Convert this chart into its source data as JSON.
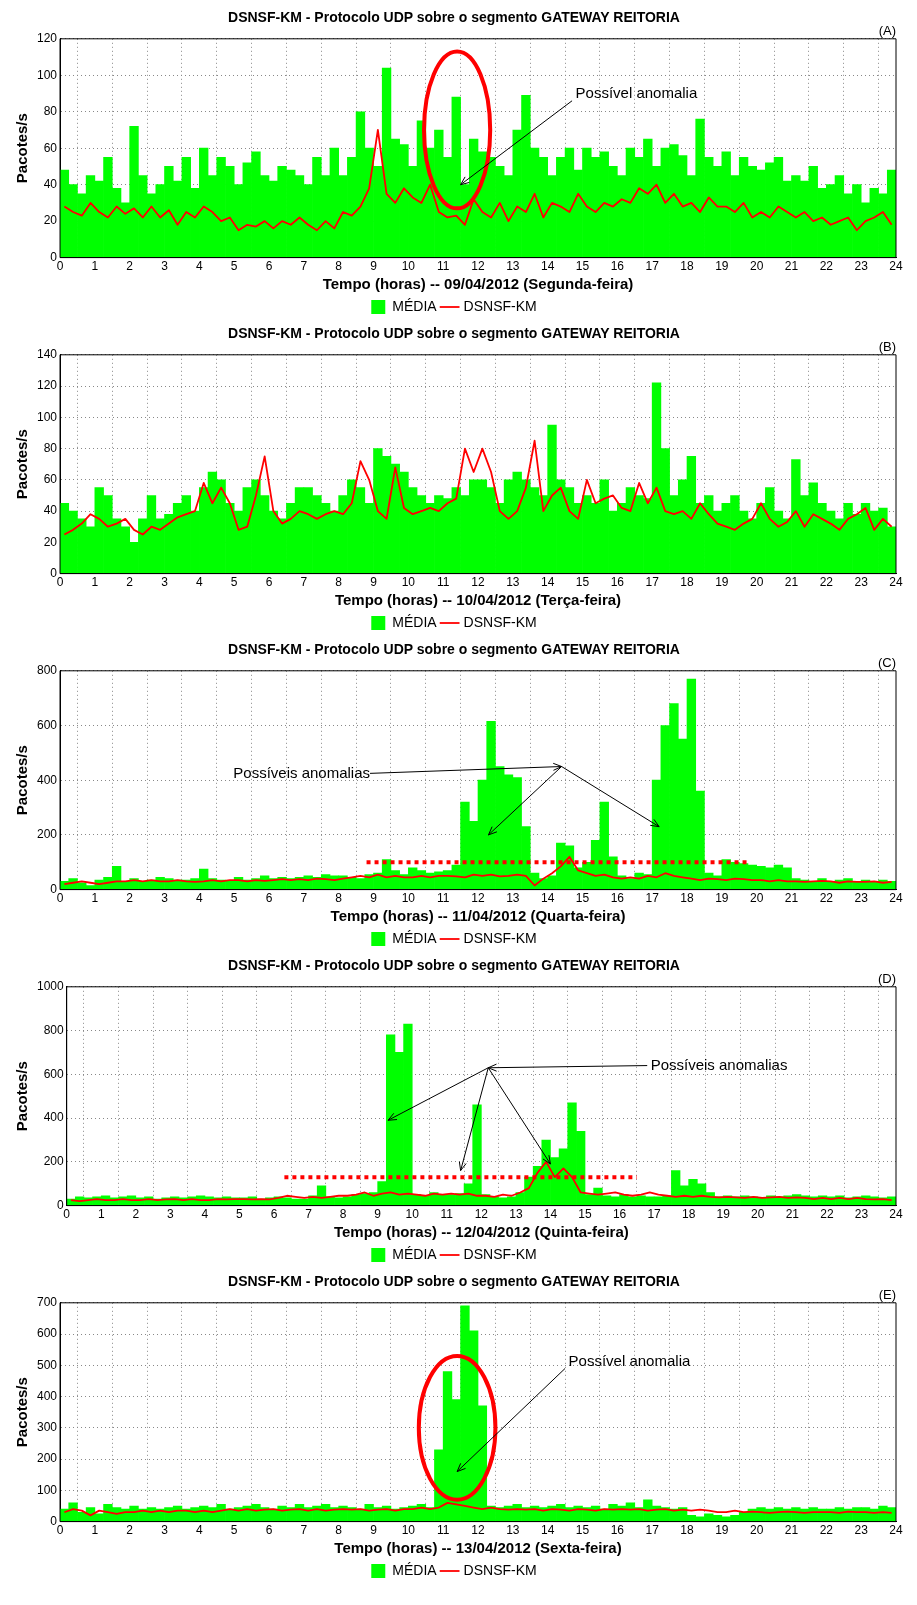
{
  "chart_data": [
    {
      "type": "bar",
      "title": "DSNSF-KM - Protocolo UDP sobre o segmento GATEWAY REITORIA",
      "xlabel": "Tempo (horas) -- 09/04/2012 (Segunda-feira)",
      "ylabel": "Pacotes/s",
      "xlim": [
        0,
        24
      ],
      "xticks": [
        0,
        1,
        2,
        3,
        4,
        5,
        6,
        7,
        8,
        9,
        10,
        11,
        12,
        13,
        14,
        15,
        16,
        17,
        18,
        19,
        20,
        21,
        22,
        23,
        24
      ],
      "ylim": [
        0,
        120
      ],
      "yticks": [
        0,
        20,
        40,
        60,
        80,
        100,
        120
      ],
      "grid": true,
      "legend": "bottom",
      "annotations": [
        "(A)",
        {
          "text": "Possível anomalia",
          "x": 11.5,
          "y": 40
        }
      ],
      "x": [
        0.125,
        0.375,
        0.625,
        0.875,
        1.125,
        1.375,
        1.625,
        1.875,
        2.125,
        2.375,
        2.625,
        2.875,
        3.125,
        3.375,
        3.625,
        3.875,
        4.125,
        4.375,
        4.625,
        4.875,
        5.125,
        5.375,
        5.625,
        5.875,
        6.125,
        6.375,
        6.625,
        6.875,
        7.125,
        7.375,
        7.625,
        7.875,
        8.125,
        8.375,
        8.625,
        8.875,
        9.125,
        9.375,
        9.625,
        9.875,
        10.125,
        10.375,
        10.625,
        10.875,
        11.125,
        11.375,
        11.625,
        11.875,
        12.125,
        12.375,
        12.625,
        12.875,
        13.125,
        13.375,
        13.625,
        13.875,
        14.125,
        14.375,
        14.625,
        14.875,
        15.125,
        15.375,
        15.625,
        15.875,
        16.125,
        16.375,
        16.625,
        16.875,
        17.125,
        17.375,
        17.625,
        17.875,
        18.125,
        18.375,
        18.625,
        18.875,
        19.125,
        19.375,
        19.625,
        19.875,
        20.125,
        20.375,
        20.625,
        20.875,
        21.125,
        21.375,
        21.625,
        21.875,
        22.125,
        22.375,
        22.625,
        22.875,
        23.125,
        23.375,
        23.625,
        23.875
      ],
      "series": [
        {
          "name": "MÉDIA",
          "color": "#00ff00",
          "values": [
            48,
            40,
            35,
            45,
            42,
            55,
            38,
            30,
            72,
            45,
            35,
            40,
            50,
            42,
            55,
            38,
            60,
            45,
            55,
            50,
            40,
            52,
            58,
            45,
            42,
            50,
            48,
            45,
            40,
            55,
            45,
            60,
            45,
            55,
            80,
            60,
            50,
            104,
            65,
            62,
            50,
            75,
            60,
            70,
            55,
            88,
            40,
            65,
            58,
            55,
            50,
            45,
            70,
            89,
            60,
            55,
            45,
            55,
            60,
            48,
            60,
            55,
            58,
            50,
            45,
            60,
            55,
            65,
            50,
            60,
            62,
            56,
            45,
            76,
            55,
            50,
            58,
            45,
            55,
            50,
            48,
            52,
            55,
            42,
            45,
            42,
            50,
            38,
            40,
            45,
            35,
            40,
            30,
            38,
            35,
            48
          ]
        },
        {
          "name": "DSNSF-KM",
          "type": "line",
          "color": "#ff0000",
          "values": [
            28,
            25,
            23,
            30,
            25,
            22,
            28,
            24,
            27,
            22,
            28,
            22,
            26,
            18,
            25,
            22,
            28,
            25,
            20,
            22,
            15,
            18,
            17,
            20,
            16,
            20,
            18,
            22,
            18,
            15,
            20,
            16,
            25,
            23,
            28,
            38,
            70,
            35,
            30,
            38,
            33,
            30,
            40,
            25,
            22,
            23,
            18,
            32,
            25,
            22,
            30,
            20,
            28,
            25,
            35,
            22,
            30,
            28,
            25,
            35,
            28,
            25,
            30,
            28,
            32,
            30,
            38,
            35,
            40,
            30,
            35,
            28,
            30,
            25,
            33,
            28,
            28,
            25,
            30,
            22,
            25,
            22,
            28,
            25,
            22,
            25,
            20,
            22,
            18,
            20,
            22,
            15,
            20,
            22,
            25,
            18
          ]
        }
      ]
    },
    {
      "type": "bar",
      "title": "DSNSF-KM - Protocolo UDP sobre o segmento GATEWAY REITORIA",
      "xlabel": "Tempo (horas) -- 10/04/2012 (Terça-feira)",
      "ylabel": "Pacotes/s",
      "xlim": [
        0,
        24
      ],
      "xticks": [
        0,
        1,
        2,
        3,
        4,
        5,
        6,
        7,
        8,
        9,
        10,
        11,
        12,
        13,
        14,
        15,
        16,
        17,
        18,
        19,
        20,
        21,
        22,
        23,
        24
      ],
      "ylim": [
        0,
        140
      ],
      "yticks": [
        0,
        20,
        40,
        60,
        80,
        100,
        120,
        140
      ],
      "grid": true,
      "legend": "bottom",
      "annotations": [
        "(B)"
      ],
      "x": [
        0.125,
        0.375,
        0.625,
        0.875,
        1.125,
        1.375,
        1.625,
        1.875,
        2.125,
        2.375,
        2.625,
        2.875,
        3.125,
        3.375,
        3.625,
        3.875,
        4.125,
        4.375,
        4.625,
        4.875,
        5.125,
        5.375,
        5.625,
        5.875,
        6.125,
        6.375,
        6.625,
        6.875,
        7.125,
        7.375,
        7.625,
        7.875,
        8.125,
        8.375,
        8.625,
        8.875,
        9.125,
        9.375,
        9.625,
        9.875,
        10.125,
        10.375,
        10.625,
        10.875,
        11.125,
        11.375,
        11.625,
        11.875,
        12.125,
        12.375,
        12.625,
        12.875,
        13.125,
        13.375,
        13.625,
        13.875,
        14.125,
        14.375,
        14.625,
        14.875,
        15.125,
        15.375,
        15.625,
        15.875,
        16.125,
        16.375,
        16.625,
        16.875,
        17.125,
        17.375,
        17.625,
        17.875,
        18.125,
        18.375,
        18.625,
        18.875,
        19.125,
        19.375,
        19.625,
        19.875,
        20.125,
        20.375,
        20.625,
        20.875,
        21.125,
        21.375,
        21.625,
        21.875,
        22.125,
        22.375,
        22.625,
        22.875,
        23.125,
        23.375,
        23.625,
        23.875
      ],
      "series": [
        {
          "name": "MÉDIA",
          "color": "#00ff00",
          "values": [
            45,
            40,
            35,
            30,
            55,
            50,
            35,
            30,
            20,
            35,
            50,
            35,
            38,
            45,
            50,
            40,
            55,
            65,
            60,
            45,
            40,
            55,
            60,
            50,
            40,
            35,
            45,
            55,
            55,
            50,
            45,
            40,
            50,
            60,
            55,
            45,
            80,
            75,
            70,
            65,
            55,
            50,
            45,
            50,
            48,
            55,
            50,
            60,
            60,
            55,
            45,
            60,
            65,
            60,
            55,
            50,
            95,
            60,
            55,
            45,
            50,
            45,
            60,
            40,
            45,
            55,
            50,
            48,
            122,
            80,
            50,
            60,
            75,
            45,
            50,
            40,
            45,
            50,
            40,
            35,
            45,
            55,
            40,
            35,
            73,
            50,
            58,
            45,
            40,
            35,
            45,
            38,
            45,
            40,
            42,
            30
          ]
        },
        {
          "name": "DSNSF-KM",
          "type": "line",
          "color": "#ff0000",
          "values": [
            25,
            28,
            32,
            38,
            35,
            30,
            32,
            35,
            28,
            25,
            30,
            28,
            32,
            36,
            38,
            40,
            58,
            45,
            55,
            45,
            28,
            30,
            50,
            75,
            40,
            32,
            35,
            40,
            38,
            35,
            38,
            40,
            38,
            45,
            72,
            60,
            40,
            35,
            68,
            42,
            38,
            40,
            42,
            40,
            45,
            48,
            80,
            65,
            80,
            65,
            40,
            35,
            40,
            55,
            85,
            40,
            50,
            55,
            40,
            35,
            60,
            45,
            48,
            50,
            42,
            40,
            58,
            45,
            55,
            40,
            38,
            40,
            35,
            45,
            38,
            32,
            30,
            28,
            32,
            35,
            45,
            35,
            30,
            33,
            40,
            30,
            38,
            35,
            32,
            28,
            35,
            38,
            42,
            28,
            35,
            30
          ]
        }
      ]
    },
    {
      "type": "bar",
      "title": "DSNSF-KM - Protocolo UDP sobre o segmento GATEWAY REITORIA",
      "xlabel": "Tempo (horas) -- 11/04/2012 (Quarta-feira)",
      "ylabel": "Pacotes/s",
      "xlim": [
        0,
        24
      ],
      "xticks": [
        0,
        1,
        2,
        3,
        4,
        5,
        6,
        7,
        8,
        9,
        10,
        11,
        12,
        13,
        14,
        15,
        16,
        17,
        18,
        19,
        20,
        21,
        22,
        23,
        24
      ],
      "ylim": [
        0,
        800
      ],
      "yticks": [
        0,
        200,
        400,
        600,
        800
      ],
      "grid": true,
      "legend": "bottom",
      "annotations": [
        "(C)",
        "Possíveis anomalias"
      ],
      "x": [
        0.125,
        0.375,
        0.625,
        0.875,
        1.125,
        1.375,
        1.625,
        1.875,
        2.125,
        2.375,
        2.625,
        2.875,
        3.125,
        3.375,
        3.625,
        3.875,
        4.125,
        4.375,
        4.625,
        4.875,
        5.125,
        5.375,
        5.625,
        5.875,
        6.125,
        6.375,
        6.625,
        6.875,
        7.125,
        7.375,
        7.625,
        7.875,
        8.125,
        8.375,
        8.625,
        8.875,
        9.125,
        9.375,
        9.625,
        9.875,
        10.125,
        10.375,
        10.625,
        10.875,
        11.125,
        11.375,
        11.625,
        11.875,
        12.125,
        12.375,
        12.625,
        12.875,
        13.125,
        13.375,
        13.625,
        13.875,
        14.125,
        14.375,
        14.625,
        14.875,
        15.125,
        15.375,
        15.625,
        15.875,
        16.125,
        16.375,
        16.625,
        16.875,
        17.125,
        17.375,
        17.625,
        17.875,
        18.125,
        18.375,
        18.625,
        18.875,
        19.125,
        19.375,
        19.625,
        19.875,
        20.125,
        20.375,
        20.625,
        20.875,
        21.125,
        21.375,
        21.625,
        21.875,
        22.125,
        22.375,
        22.625,
        22.875,
        23.125,
        23.375,
        23.625,
        23.875
      ],
      "series": [
        {
          "name": "MÉDIA",
          "color": "#00ff00",
          "values": [
            30,
            40,
            25,
            15,
            35,
            45,
            85,
            30,
            40,
            30,
            35,
            45,
            40,
            35,
            35,
            40,
            75,
            40,
            35,
            30,
            45,
            35,
            40,
            50,
            40,
            45,
            40,
            45,
            50,
            45,
            55,
            50,
            50,
            45,
            40,
            55,
            60,
            110,
            70,
            55,
            80,
            70,
            60,
            65,
            70,
            90,
            320,
            250,
            400,
            615,
            450,
            420,
            410,
            230,
            60,
            40,
            50,
            170,
            160,
            80,
            100,
            180,
            320,
            120,
            50,
            40,
            60,
            55,
            400,
            600,
            680,
            550,
            770,
            360,
            60,
            50,
            110,
            100,
            95,
            90,
            85,
            80,
            90,
            80,
            40,
            35,
            30,
            40,
            30,
            35,
            40,
            30,
            35,
            30,
            35,
            30
          ]
        },
        {
          "name": "DSNSF-KM",
          "type": "line",
          "color": "#ff0000",
          "values": [
            20,
            25,
            30,
            25,
            20,
            25,
            30,
            30,
            35,
            30,
            35,
            30,
            30,
            35,
            30,
            28,
            30,
            35,
            30,
            35,
            35,
            30,
            35,
            32,
            35,
            38,
            35,
            38,
            35,
            40,
            38,
            35,
            40,
            45,
            50,
            45,
            55,
            45,
            50,
            45,
            45,
            50,
            45,
            50,
            50,
            48,
            45,
            55,
            50,
            55,
            48,
            50,
            55,
            50,
            15,
            40,
            60,
            85,
            120,
            70,
            60,
            50,
            55,
            45,
            40,
            45,
            40,
            50,
            45,
            60,
            50,
            45,
            40,
            35,
            40,
            38,
            35,
            40,
            38,
            35,
            35,
            30,
            35,
            30,
            30,
            28,
            30,
            32,
            30,
            25,
            30,
            28,
            28,
            30,
            25,
            28
          ]
        },
        {
          "type": "line",
          "color": "#ff0000",
          "line_style": "dotted",
          "x": [
            8.8,
            19.8
          ],
          "values": [
            100,
            100
          ]
        }
      ]
    },
    {
      "type": "bar",
      "title": "DSNSF-KM - Protocolo UDP sobre o segmento GATEWAY REITORIA",
      "xlabel": "Tempo (horas) -- 12/04/2012 (Quinta-feira)",
      "ylabel": "Pacotes/s",
      "xlim": [
        0,
        24
      ],
      "xticks": [
        0,
        1,
        2,
        3,
        4,
        5,
        6,
        7,
        8,
        9,
        10,
        11,
        12,
        13,
        14,
        15,
        16,
        17,
        18,
        19,
        20,
        21,
        22,
        23,
        24
      ],
      "ylim": [
        0,
        1000
      ],
      "yticks": [
        0,
        200,
        400,
        600,
        800,
        1000
      ],
      "grid": true,
      "legend": "bottom",
      "annotations": [
        "(D)",
        "Possíveis anomalias"
      ],
      "x": [
        0.125,
        0.375,
        0.625,
        0.875,
        1.125,
        1.375,
        1.625,
        1.875,
        2.125,
        2.375,
        2.625,
        2.875,
        3.125,
        3.375,
        3.625,
        3.875,
        4.125,
        4.375,
        4.625,
        4.875,
        5.125,
        5.375,
        5.625,
        5.875,
        6.125,
        6.375,
        6.625,
        6.875,
        7.125,
        7.375,
        7.625,
        7.875,
        8.125,
        8.375,
        8.625,
        8.875,
        9.125,
        9.375,
        9.625,
        9.875,
        10.125,
        10.375,
        10.625,
        10.875,
        11.125,
        11.375,
        11.625,
        11.875,
        12.125,
        12.375,
        12.625,
        12.875,
        13.125,
        13.375,
        13.625,
        13.875,
        14.125,
        14.375,
        14.625,
        14.875,
        15.125,
        15.375,
        15.625,
        15.875,
        16.125,
        16.375,
        16.625,
        16.875,
        17.125,
        17.375,
        17.625,
        17.875,
        18.125,
        18.375,
        18.625,
        18.875,
        19.125,
        19.375,
        19.625,
        19.875,
        20.125,
        20.375,
        20.625,
        20.875,
        21.125,
        21.375,
        21.625,
        21.875,
        22.125,
        22.375,
        22.625,
        22.875,
        23.125,
        23.375,
        23.625,
        23.875
      ],
      "series": [
        {
          "name": "MÉDIA",
          "color": "#00ff00",
          "values": [
            30,
            40,
            35,
            40,
            45,
            35,
            40,
            45,
            35,
            40,
            30,
            35,
            40,
            35,
            40,
            45,
            40,
            35,
            40,
            35,
            35,
            40,
            30,
            35,
            40,
            35,
            30,
            30,
            45,
            90,
            40,
            35,
            40,
            50,
            55,
            60,
            110,
            780,
            700,
            830,
            50,
            45,
            60,
            50,
            50,
            55,
            100,
            460,
            50,
            40,
            35,
            40,
            60,
            130,
            180,
            300,
            220,
            260,
            470,
            340,
            50,
            80,
            45,
            40,
            50,
            40,
            45,
            40,
            40,
            45,
            160,
            90,
            120,
            100,
            60,
            40,
            45,
            40,
            45,
            40,
            35,
            45,
            40,
            45,
            50,
            45,
            40,
            45,
            40,
            45,
            35,
            40,
            45,
            40,
            35,
            40
          ]
        },
        {
          "name": "DSNSF-KM",
          "type": "line",
          "color": "#ff0000",
          "values": [
            25,
            20,
            25,
            30,
            25,
            25,
            30,
            25,
            25,
            30,
            25,
            28,
            30,
            25,
            30,
            25,
            25,
            30,
            28,
            30,
            30,
            28,
            30,
            28,
            35,
            45,
            40,
            35,
            40,
            35,
            40,
            45,
            45,
            50,
            60,
            45,
            55,
            60,
            50,
            55,
            50,
            45,
            55,
            50,
            55,
            50,
            55,
            45,
            45,
            40,
            50,
            45,
            60,
            80,
            150,
            200,
            130,
            170,
            130,
            60,
            55,
            50,
            55,
            60,
            50,
            45,
            50,
            60,
            50,
            45,
            40,
            45,
            40,
            45,
            40,
            38,
            40,
            38,
            35,
            40,
            35,
            38,
            40,
            35,
            38,
            35,
            30,
            35,
            30,
            35,
            30,
            35,
            30,
            28,
            30,
            25
          ]
        },
        {
          "type": "line",
          "color": "#ff0000",
          "line_style": "dotted",
          "x": [
            6.3,
            16.5
          ],
          "values": [
            130,
            130
          ]
        }
      ]
    },
    {
      "type": "bar",
      "title": "DSNSF-KM - Protocolo UDP sobre o segmento GATEWAY REITORIA",
      "xlabel": "Tempo (horas) -- 13/04/2012 (Sexta-feira)",
      "ylabel": "Pacotes/s",
      "xlim": [
        0,
        24
      ],
      "xticks": [
        0,
        1,
        2,
        3,
        4,
        5,
        6,
        7,
        8,
        9,
        10,
        11,
        12,
        13,
        14,
        15,
        16,
        17,
        18,
        19,
        20,
        21,
        22,
        23,
        24
      ],
      "ylim": [
        0,
        700
      ],
      "yticks": [
        0,
        100,
        200,
        300,
        400,
        500,
        600,
        700
      ],
      "grid": true,
      "legend": "bottom",
      "annotations": [
        "(E)",
        {
          "text": "Possível anomalia",
          "x": 11.4,
          "y": 160
        }
      ],
      "x": [
        0.125,
        0.375,
        0.625,
        0.875,
        1.125,
        1.375,
        1.625,
        1.875,
        2.125,
        2.375,
        2.625,
        2.875,
        3.125,
        3.375,
        3.625,
        3.875,
        4.125,
        4.375,
        4.625,
        4.875,
        5.125,
        5.375,
        5.625,
        5.875,
        6.125,
        6.375,
        6.625,
        6.875,
        7.125,
        7.375,
        7.625,
        7.875,
        8.125,
        8.375,
        8.625,
        8.875,
        9.125,
        9.375,
        9.625,
        9.875,
        10.125,
        10.375,
        10.625,
        10.875,
        11.125,
        11.375,
        11.625,
        11.875,
        12.125,
        12.375,
        12.625,
        12.875,
        13.125,
        13.375,
        13.625,
        13.875,
        14.125,
        14.375,
        14.625,
        14.875,
        15.125,
        15.375,
        15.625,
        15.875,
        16.125,
        16.375,
        16.625,
        16.875,
        17.125,
        17.375,
        17.625,
        17.875,
        18.125,
        18.375,
        18.625,
        18.875,
        19.125,
        19.375,
        19.625,
        19.875,
        20.125,
        20.375,
        20.625,
        20.875,
        21.125,
        21.375,
        21.625,
        21.875,
        22.125,
        22.375,
        22.625,
        22.875,
        23.125,
        23.375,
        23.625,
        23.875
      ],
      "series": [
        {
          "name": "MÉDIA",
          "color": "#00ff00",
          "values": [
            40,
            60,
            30,
            45,
            25,
            55,
            45,
            40,
            50,
            40,
            45,
            40,
            45,
            50,
            40,
            45,
            50,
            45,
            55,
            40,
            45,
            50,
            55,
            45,
            40,
            50,
            45,
            55,
            45,
            50,
            55,
            45,
            50,
            45,
            40,
            55,
            45,
            50,
            40,
            45,
            50,
            55,
            45,
            230,
            480,
            390,
            690,
            610,
            370,
            50,
            45,
            50,
            55,
            45,
            50,
            45,
            50,
            55,
            45,
            50,
            45,
            50,
            40,
            55,
            50,
            60,
            45,
            70,
            50,
            45,
            40,
            45,
            20,
            15,
            25,
            20,
            15,
            20,
            30,
            40,
            45,
            40,
            45,
            40,
            45,
            40,
            45,
            40,
            40,
            45,
            40,
            45,
            45,
            40,
            50,
            45
          ]
        },
        {
          "name": "DSNSF-KM",
          "type": "line",
          "color": "#ff0000",
          "values": [
            30,
            40,
            35,
            20,
            35,
            30,
            25,
            30,
            30,
            35,
            30,
            35,
            30,
            35,
            35,
            30,
            35,
            30,
            35,
            40,
            35,
            40,
            35,
            38,
            40,
            35,
            38,
            40,
            35,
            40,
            35,
            38,
            40,
            38,
            40,
            35,
            38,
            40,
            35,
            40,
            40,
            45,
            40,
            45,
            60,
            55,
            50,
            45,
            40,
            45,
            40,
            38,
            40,
            38,
            40,
            35,
            40,
            38,
            35,
            40,
            38,
            35,
            40,
            38,
            40,
            38,
            40,
            35,
            38,
            40,
            35,
            38,
            35,
            38,
            35,
            30,
            30,
            35,
            30,
            32,
            30,
            28,
            30,
            32,
            30,
            28,
            30,
            30,
            30,
            28,
            32,
            30,
            30,
            28,
            30,
            28
          ]
        }
      ]
    }
  ]
}
